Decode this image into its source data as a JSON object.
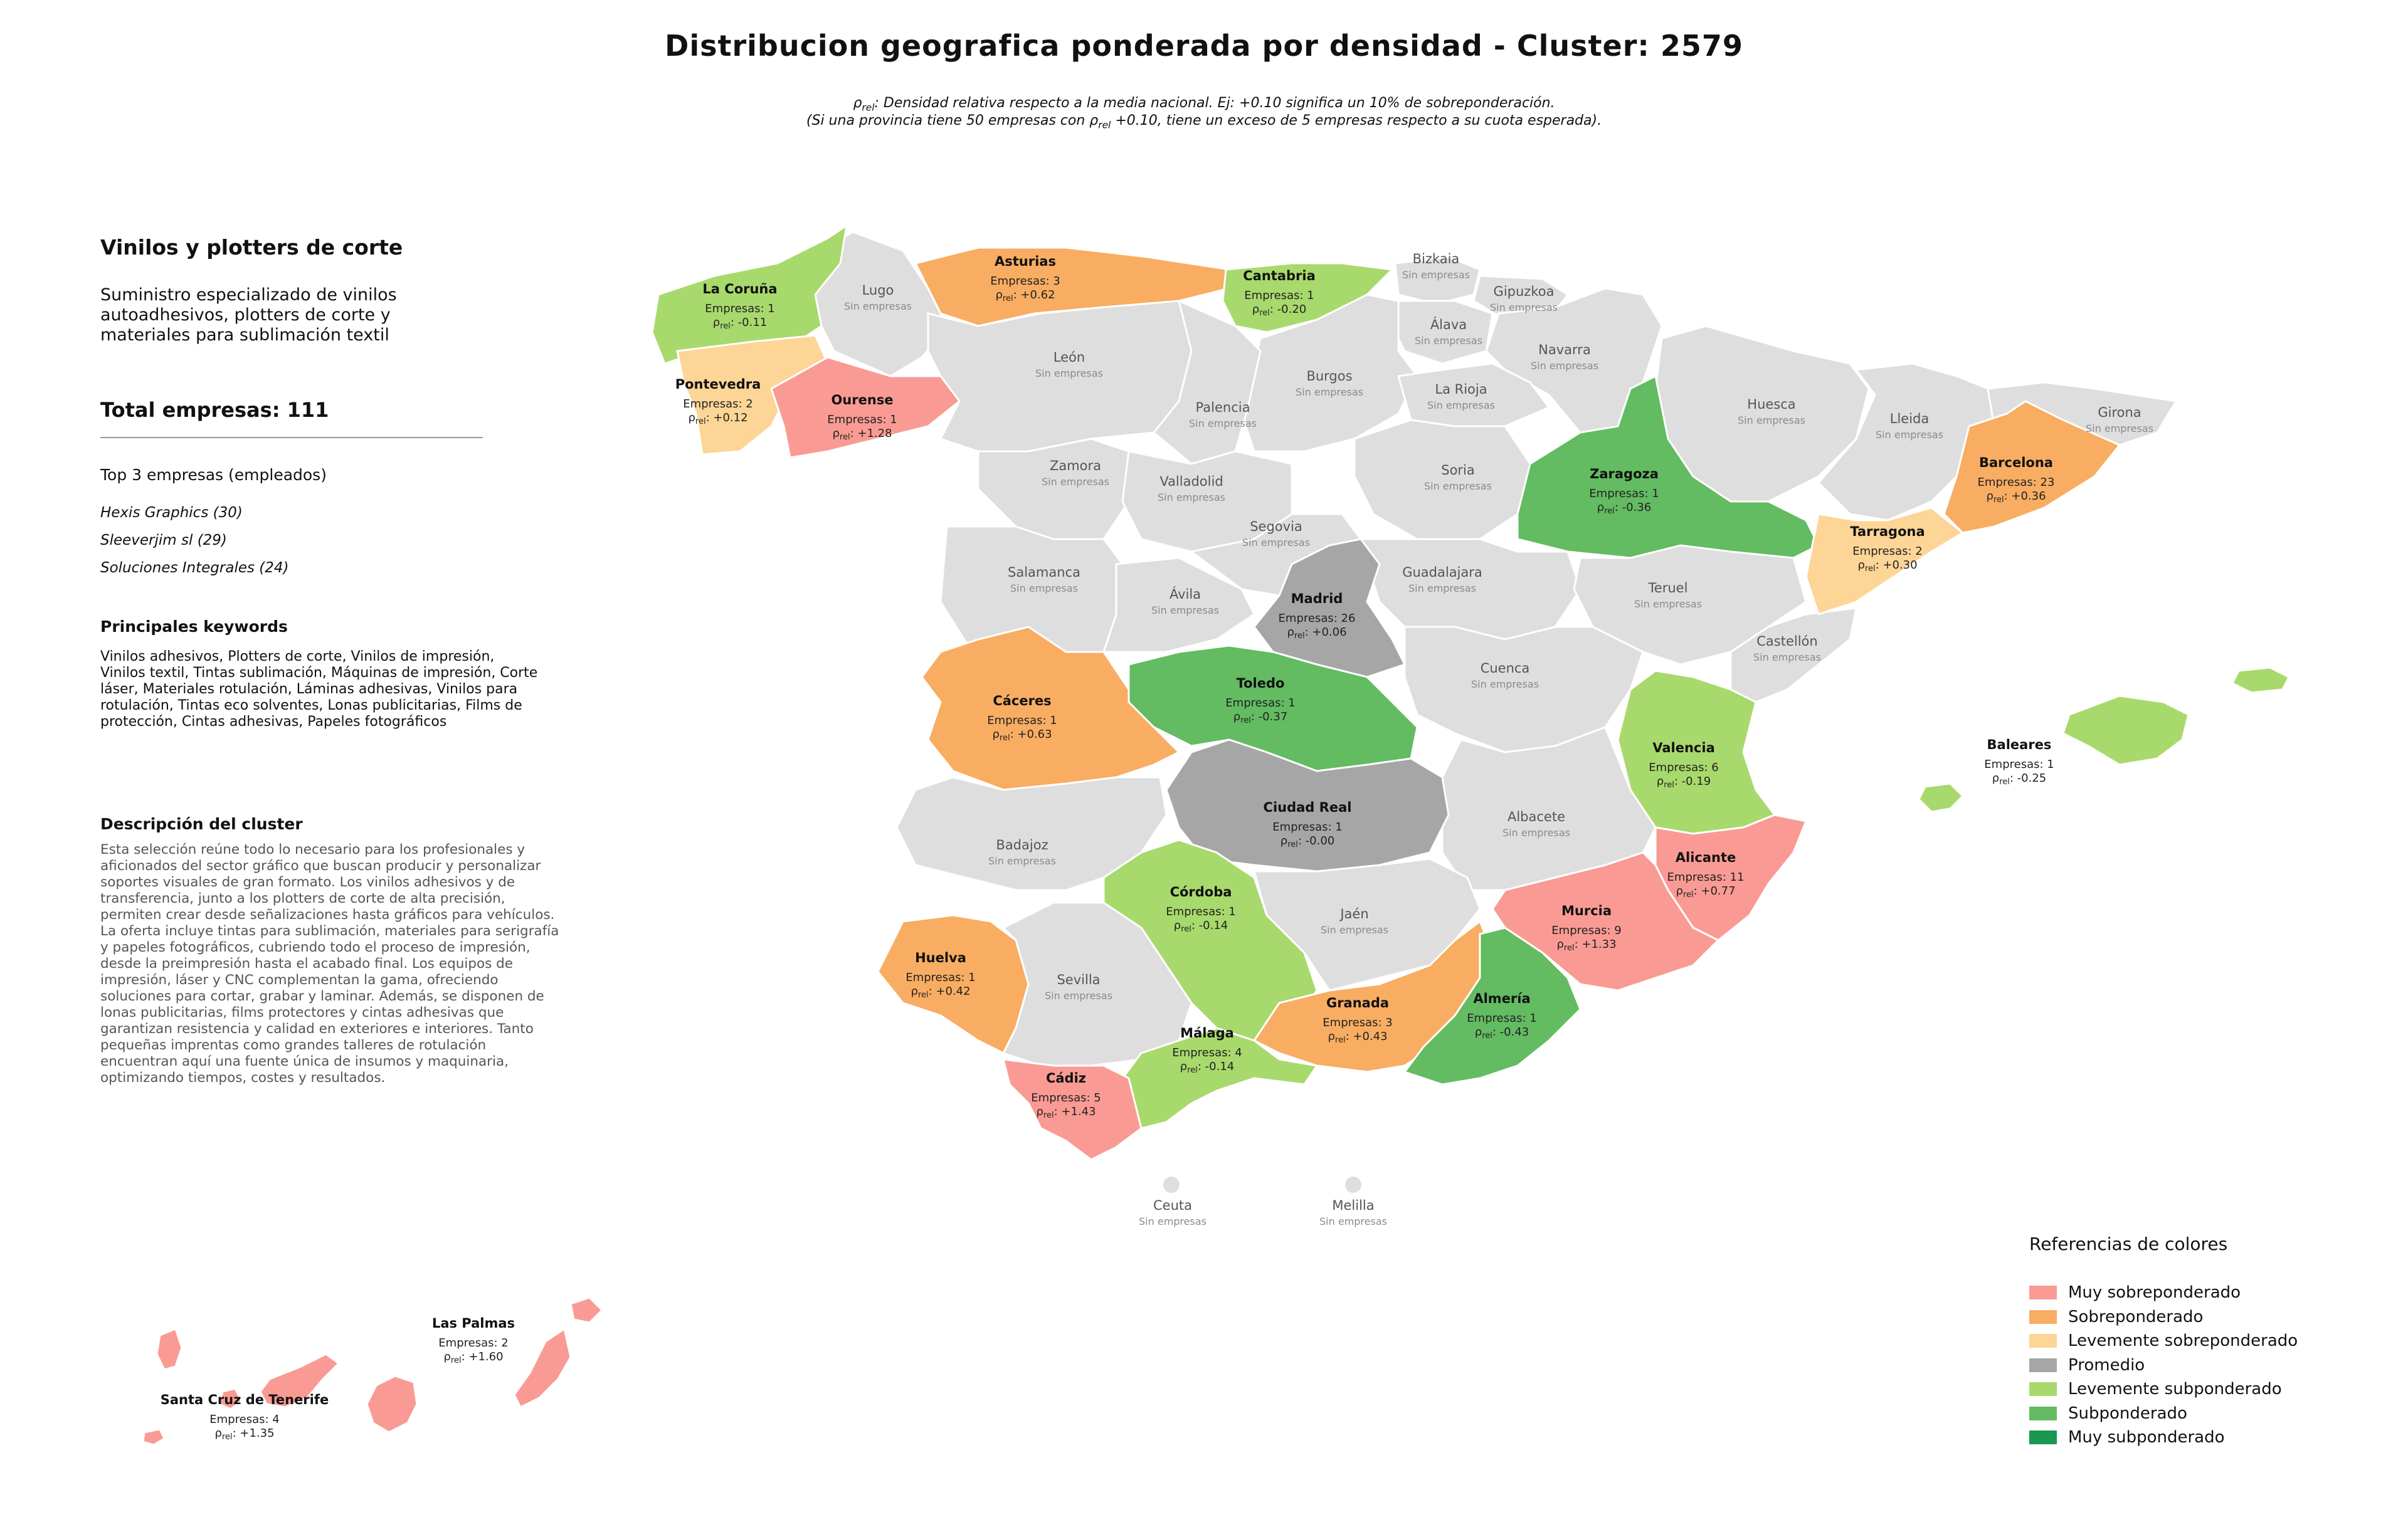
{
  "title": "Distribucion geografica ponderada por densidad - Cluster: 2579",
  "subtitle_line1": "ρrel: Densidad relativa respecto a la media nacional. Ej: +0.10 significa un 10% de sobreponderación.",
  "subtitle_line2": "(Si una provincia tiene 50 empresas con ρrel +0.10, tiene un exceso de 5 empresas respecto a su cuota esperada).",
  "panel": {
    "heading": "Vinilos y plotters de corte",
    "description": "Suministro especializado de vinilos autoadhesivos, plotters de corte y materiales para sublimación textil",
    "total": "Total empresas: 111",
    "top_label": "Top 3 empresas (empleados)",
    "top_companies": [
      "Hexis Graphics (30)",
      "Sleeverjim sl (29)",
      "Soluciones Integrales (24)"
    ],
    "keywords_heading": "Principales keywords",
    "keywords": "Vinilos adhesivos, Plotters de corte, Vinilos de impresión, Vinilos textil, Tintas sublimación, Máquinas de impresión, Corte láser, Materiales rotulación, Láminas adhesivas, Vinilos para rotulación, Tintas eco solventes, Lonas publicitarias, Films de protección, Cintas adhesivas, Papeles fotográficos",
    "cluster_heading": "Descripción del cluster",
    "cluster_text": "Esta selección reúne todo lo necesario para los profesionales y aficionados del sector gráfico que buscan producir y personalizar soportes visuales de gran formato. Los vinilos adhesivos y de transferencia, junto a los plotters de corte de alta precisión, permiten crear desde señalizaciones hasta gráficos para vehículos. La oferta incluye tintas para sublimación, materiales para serigrafía y papeles fotográficos, cubriendo todo el proceso de impresión, desde la preimpresión hasta el acabado final. Los equipos de impresión, láser y CNC complementan la gama, ofreciendo soluciones para cortar, grabar y laminar. Además, se disponen de lonas publicitarias, films protectores y cintas adhesivas que garantizan resistencia y calidad en exteriores e interiores. Tanto pequeñas imprentas como grandes talleres de rotulación encuentran aquí una fuente única de insumos y maquinaria, optimizando tiempos, costes y resultados."
  },
  "map_labels": {
    "count_prefix": "Empresas: ",
    "rho_label": "ρrel: ",
    "no_companies": "Sin empresas"
  },
  "colors": {
    "muy_sobre": "#f99b94",
    "sobre": "#f8ad62",
    "lev_sobre": "#fdd596",
    "promedio": "#a6a6a6",
    "lev_sub": "#a8d96c",
    "sub": "#63bb62",
    "muy_sub": "#1a9750",
    "empty": "#dedede"
  },
  "provinces": [
    {
      "name": "La Coruña",
      "count": "1",
      "rho": "-0.11",
      "category": "lev_sub"
    },
    {
      "name": "Asturias",
      "count": "3",
      "rho": "+0.62",
      "category": "sobre"
    },
    {
      "name": "Cantabria",
      "count": "1",
      "rho": "-0.20",
      "category": "lev_sub"
    },
    {
      "name": "Pontevedra",
      "count": "2",
      "rho": "+0.12",
      "category": "lev_sobre"
    },
    {
      "name": "Ourense",
      "count": "1",
      "rho": "+1.28",
      "category": "muy_sobre"
    },
    {
      "name": "Barcelona",
      "count": "23",
      "rho": "+0.36",
      "category": "sobre"
    },
    {
      "name": "Zaragoza",
      "count": "1",
      "rho": "-0.36",
      "category": "sub"
    },
    {
      "name": "Tarragona",
      "count": "2",
      "rho": "+0.30",
      "category": "lev_sobre"
    },
    {
      "name": "Madrid",
      "count": "26",
      "rho": "+0.06",
      "category": "promedio"
    },
    {
      "name": "Cáceres",
      "count": "1",
      "rho": "+0.63",
      "category": "sobre"
    },
    {
      "name": "Toledo",
      "count": "1",
      "rho": "-0.37",
      "category": "sub"
    },
    {
      "name": "Valencia",
      "count": "6",
      "rho": "-0.19",
      "category": "lev_sub"
    },
    {
      "name": "Baleares",
      "count": "1",
      "rho": "-0.25",
      "category": "lev_sub"
    },
    {
      "name": "Ciudad Real",
      "count": "1",
      "rho": "-0.00",
      "category": "promedio"
    },
    {
      "name": "Alicante",
      "count": "11",
      "rho": "+0.77",
      "category": "muy_sobre"
    },
    {
      "name": "Córdoba",
      "count": "1",
      "rho": "-0.14",
      "category": "lev_sub"
    },
    {
      "name": "Murcia",
      "count": "9",
      "rho": "+1.33",
      "category": "muy_sobre"
    },
    {
      "name": "Huelva",
      "count": "1",
      "rho": "+0.42",
      "category": "sobre"
    },
    {
      "name": "Granada",
      "count": "3",
      "rho": "+0.43",
      "category": "sobre"
    },
    {
      "name": "Almería",
      "count": "1",
      "rho": "-0.43",
      "category": "sub"
    },
    {
      "name": "Málaga",
      "count": "4",
      "rho": "-0.14",
      "category": "lev_sub"
    },
    {
      "name": "Cádiz",
      "count": "5",
      "rho": "+1.43",
      "category": "muy_sobre"
    },
    {
      "name": "Las Palmas",
      "count": "2",
      "rho": "+1.60",
      "category": "muy_sobre"
    },
    {
      "name": "Santa Cruz de Tenerife",
      "count": "4",
      "rho": "+1.35",
      "category": "muy_sobre"
    }
  ],
  "empty_provinces": [
    "Lugo",
    "Bizkaia",
    "Gipuzkoa",
    "Álava",
    "Navarra",
    "León",
    "Burgos",
    "La Rioja",
    "Huesca",
    "Lleida",
    "Girona",
    "Palencia",
    "Zamora",
    "Valladolid",
    "Soria",
    "Segovia",
    "Salamanca",
    "Ávila",
    "Guadalajara",
    "Teruel",
    "Castellón",
    "Cuenca",
    "Albacete",
    "Badajoz",
    "Jaén",
    "Sevilla",
    "Ceuta",
    "Melilla"
  ],
  "legend": {
    "title": "Referencias de colores",
    "items": [
      {
        "label": "Muy sobreponderado",
        "color": "#f99b94"
      },
      {
        "label": "Sobreponderado",
        "color": "#f8ad62"
      },
      {
        "label": "Levemente sobreponderado",
        "color": "#fdd596"
      },
      {
        "label": "Promedio",
        "color": "#a6a6a6"
      },
      {
        "label": "Levemente subponderado",
        "color": "#a8d96c"
      },
      {
        "label": "Subponderado",
        "color": "#63bb62"
      },
      {
        "label": "Muy subponderado",
        "color": "#1a9750"
      }
    ]
  }
}
